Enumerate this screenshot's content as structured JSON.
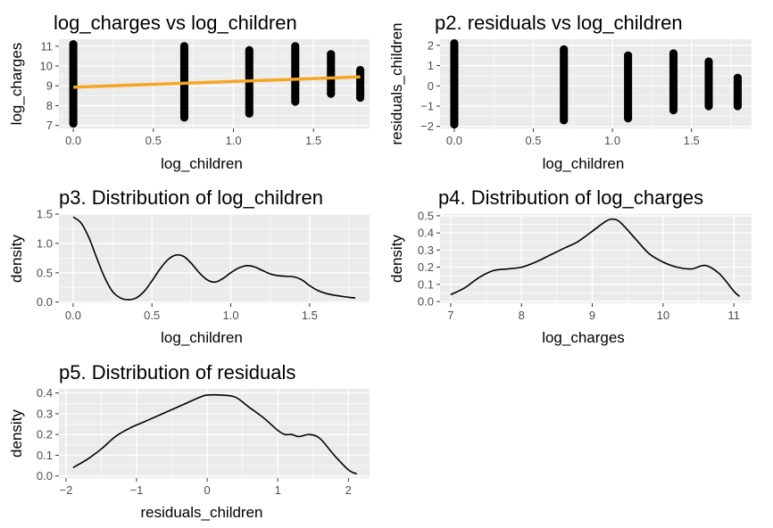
{
  "chart_data": [
    {
      "id": "p1",
      "type": "scatter",
      "title": "log_charges vs log_children",
      "xlabel": "log_children",
      "ylabel": "log_charges",
      "xlim": [
        -0.09,
        1.85
      ],
      "ylim": [
        6.85,
        11.35
      ],
      "xticks": [
        0.0,
        0.5,
        1.0,
        1.5
      ],
      "xticklabels": [
        "0.0",
        "0.5",
        "1.0",
        "1.5"
      ],
      "yticks": [
        7,
        8,
        9,
        10,
        11
      ],
      "yticklabels": [
        "7",
        "8",
        "9",
        "10",
        "11"
      ],
      "grid": true,
      "columns": [
        {
          "x": 0.0,
          "ymin": 7.1,
          "ymax": 11.1
        },
        {
          "x": 0.693,
          "ymin": 7.4,
          "ymax": 11.0
        },
        {
          "x": 1.099,
          "ymin": 7.6,
          "ymax": 10.8
        },
        {
          "x": 1.386,
          "ymin": 8.2,
          "ymax": 11.0
        },
        {
          "x": 1.609,
          "ymin": 8.6,
          "ymax": 10.6
        },
        {
          "x": 1.792,
          "ymin": 8.4,
          "ymax": 9.8
        }
      ],
      "fit_line": {
        "x": [
          0.0,
          1.792
        ],
        "y": [
          8.93,
          9.45
        ],
        "color": "#f5a623"
      }
    },
    {
      "id": "p2",
      "type": "scatter",
      "title": "p2. residuals vs log_children",
      "xlabel": "log_children",
      "ylabel": "residuals_children",
      "xlim": [
        -0.09,
        1.88
      ],
      "ylim": [
        -2.1,
        2.3
      ],
      "xticks": [
        0.0,
        0.5,
        1.0,
        1.5
      ],
      "xticklabels": [
        "0.0",
        "0.5",
        "1.0",
        "1.5"
      ],
      "yticks": [
        -2,
        -1,
        0,
        1,
        2
      ],
      "yticklabels": [
        "−2",
        "−1",
        "0",
        "1",
        "2"
      ],
      "grid": true,
      "columns": [
        {
          "x": 0.0,
          "ymin": -1.9,
          "ymax": 2.1
        },
        {
          "x": 0.693,
          "ymin": -1.7,
          "ymax": 1.8
        },
        {
          "x": 1.099,
          "ymin": -1.6,
          "ymax": 1.5
        },
        {
          "x": 1.386,
          "ymin": -1.2,
          "ymax": 1.6
        },
        {
          "x": 1.609,
          "ymin": -1.0,
          "ymax": 1.2
        },
        {
          "x": 1.792,
          "ymin": -1.0,
          "ymax": 0.4
        }
      ]
    },
    {
      "id": "p3",
      "type": "line",
      "title": "p3. Distribution of log_children",
      "xlabel": "log_children",
      "ylabel": "density",
      "xlim": [
        -0.09,
        1.88
      ],
      "ylim": [
        -0.02,
        1.5
      ],
      "xticks": [
        0.0,
        0.5,
        1.0,
        1.5
      ],
      "xticklabels": [
        "0.0",
        "0.5",
        "1.0",
        "1.5"
      ],
      "yticks": [
        0.0,
        0.5,
        1.0,
        1.5
      ],
      "yticklabels": [
        "0.0",
        "0.5",
        "1.0",
        "1.5"
      ],
      "grid": true,
      "x": [
        0.0,
        0.05,
        0.1,
        0.15,
        0.2,
        0.25,
        0.3,
        0.35,
        0.4,
        0.45,
        0.5,
        0.55,
        0.6,
        0.65,
        0.7,
        0.75,
        0.8,
        0.85,
        0.9,
        0.95,
        1.0,
        1.05,
        1.1,
        1.15,
        1.2,
        1.25,
        1.3,
        1.35,
        1.4,
        1.45,
        1.5,
        1.55,
        1.6,
        1.65,
        1.7,
        1.75,
        1.79
      ],
      "y": [
        1.45,
        1.35,
        1.1,
        0.75,
        0.42,
        0.18,
        0.07,
        0.04,
        0.07,
        0.18,
        0.36,
        0.56,
        0.72,
        0.8,
        0.78,
        0.66,
        0.5,
        0.38,
        0.34,
        0.4,
        0.5,
        0.58,
        0.62,
        0.6,
        0.54,
        0.48,
        0.45,
        0.44,
        0.43,
        0.38,
        0.28,
        0.2,
        0.15,
        0.12,
        0.1,
        0.08,
        0.07
      ]
    },
    {
      "id": "p4",
      "type": "line",
      "title": "p4. Distribution of log_charges",
      "xlabel": "log_charges",
      "ylabel": "density",
      "xlim": [
        6.85,
        11.25
      ],
      "ylim": [
        -0.01,
        0.51
      ],
      "xticks": [
        7,
        8,
        9,
        10,
        11
      ],
      "xticklabels": [
        "7",
        "8",
        "9",
        "10",
        "11"
      ],
      "yticks": [
        0.0,
        0.1,
        0.2,
        0.3,
        0.4,
        0.5
      ],
      "yticklabels": [
        "0.0",
        "0.1",
        "0.2",
        "0.3",
        "0.4",
        "0.5"
      ],
      "grid": true,
      "x": [
        7.0,
        7.2,
        7.4,
        7.6,
        7.8,
        8.0,
        8.2,
        8.4,
        8.6,
        8.8,
        9.0,
        9.2,
        9.3,
        9.4,
        9.6,
        9.8,
        10.0,
        10.2,
        10.4,
        10.6,
        10.8,
        11.0,
        11.08
      ],
      "y": [
        0.04,
        0.08,
        0.14,
        0.18,
        0.19,
        0.2,
        0.23,
        0.27,
        0.31,
        0.35,
        0.41,
        0.47,
        0.48,
        0.46,
        0.37,
        0.28,
        0.23,
        0.2,
        0.19,
        0.21,
        0.16,
        0.06,
        0.03
      ]
    },
    {
      "id": "p5",
      "type": "line",
      "title": "p5. Distribution of residuals",
      "xlabel": "residuals_children",
      "ylabel": "density",
      "xlim": [
        -2.1,
        2.3
      ],
      "ylim": [
        -0.01,
        0.42
      ],
      "xticks": [
        -2,
        -1,
        0,
        1,
        2
      ],
      "xticklabels": [
        "−2",
        "−1",
        "0",
        "1",
        "2"
      ],
      "yticks": [
        0.0,
        0.1,
        0.2,
        0.3,
        0.4
      ],
      "yticklabels": [
        "0.0",
        "0.1",
        "0.2",
        "0.3",
        "0.4"
      ],
      "grid": true,
      "x": [
        -1.9,
        -1.7,
        -1.5,
        -1.3,
        -1.1,
        -0.9,
        -0.7,
        -0.5,
        -0.3,
        -0.1,
        0.0,
        0.2,
        0.4,
        0.6,
        0.8,
        1.0,
        1.1,
        1.2,
        1.3,
        1.45,
        1.6,
        1.8,
        2.0,
        2.12
      ],
      "y": [
        0.04,
        0.08,
        0.13,
        0.19,
        0.23,
        0.26,
        0.29,
        0.32,
        0.35,
        0.38,
        0.39,
        0.39,
        0.38,
        0.33,
        0.28,
        0.22,
        0.2,
        0.2,
        0.19,
        0.2,
        0.18,
        0.1,
        0.03,
        0.01
      ]
    }
  ]
}
